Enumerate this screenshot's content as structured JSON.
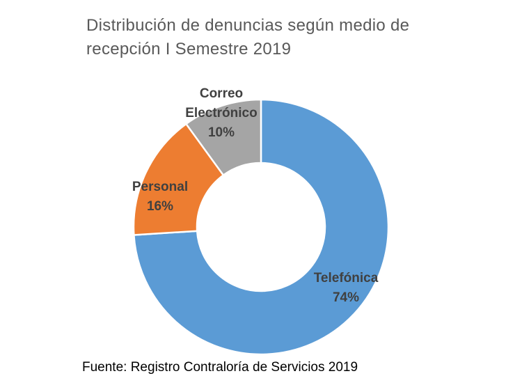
{
  "chart_data": {
    "type": "pie",
    "subtype": "donut",
    "title_line1": "Distribución de denuncias según medio de",
    "title_line2": "recepción  I Semestre 2019",
    "categories": [
      "Telefónica",
      "Personal",
      "Correo Electrónico"
    ],
    "label_lines": [
      [
        "Telefónica"
      ],
      [
        "Personal"
      ],
      [
        "Correo",
        "Electrónico"
      ]
    ],
    "values": [
      74,
      16,
      10
    ],
    "value_labels": [
      "74%",
      "16%",
      "10%"
    ],
    "colors": [
      "#5B9BD5",
      "#ED7D31",
      "#A5A5A5"
    ],
    "legend": "none"
  },
  "source": "Fuente: Registro Contraloría de Servicios 2019"
}
